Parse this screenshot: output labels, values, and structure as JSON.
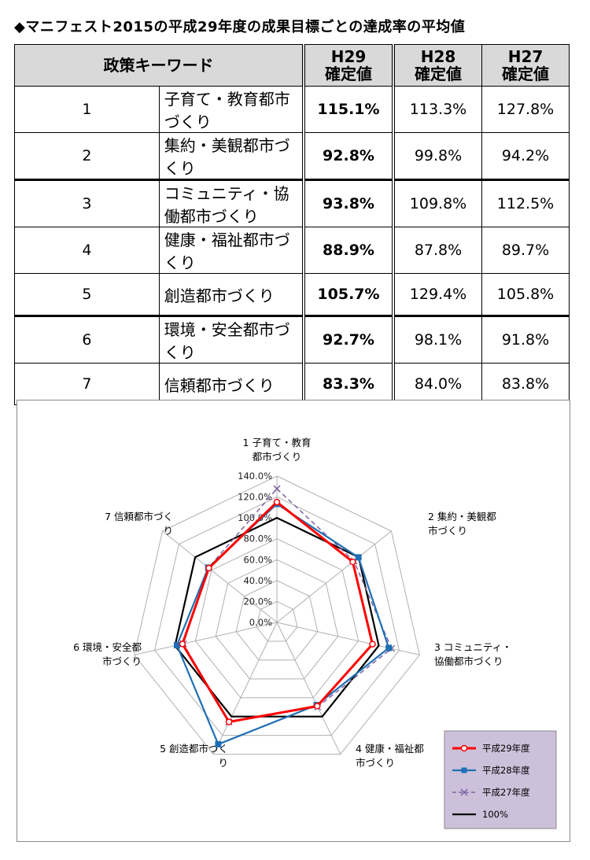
{
  "title": "◆マニフェスト2015の平成29年度の成果目標ごとの達成率の平均値",
  "table": {
    "headers": {
      "keyword": "政策キーワード",
      "h29_line1": "H29",
      "h29_line2": "確定値",
      "h28_line1": "H28",
      "h28_line2": "確定値",
      "h27_line1": "H27",
      "h27_line2": "確定値"
    },
    "rows": [
      {
        "no": "1",
        "keyword": "子育て・教育都市づくり",
        "h29": "115.1%",
        "h28": "113.3%",
        "h27": "127.8%"
      },
      {
        "no": "2",
        "keyword": "集約・美観都市づくり",
        "h29": "92.8%",
        "h28": "99.8%",
        "h27": "94.2%"
      },
      {
        "no": "3",
        "keyword": "コミュニティ・協働都市づくり",
        "h29": "93.8%",
        "h28": "109.8%",
        "h27": "112.5%"
      },
      {
        "no": "4",
        "keyword": "健康・福祉都市づくり",
        "h29": "88.9%",
        "h28": "87.8%",
        "h27": "89.7%"
      },
      {
        "no": "5",
        "keyword": "創造都市づくり",
        "h29": "105.7%",
        "h28": "129.4%",
        "h27": "105.8%"
      },
      {
        "no": "6",
        "keyword": "環境・安全都市づくり",
        "h29": "92.7%",
        "h28": "98.1%",
        "h27": "91.8%"
      },
      {
        "no": "7",
        "keyword": "信頼都市づくり",
        "h29": "83.3%",
        "h28": "84.0%",
        "h27": "83.8%"
      }
    ]
  },
  "chart_data": {
    "type": "radar",
    "categories": [
      [
        "1 子育て・教育",
        "都市づくり"
      ],
      [
        "2 集約・美観都",
        "市づくり"
      ],
      [
        "3 コミュニティ・",
        "協働都市づくり"
      ],
      [
        "4 健康・福祉都",
        "市づくり"
      ],
      [
        "5 創造都市づく",
        "り"
      ],
      [
        "6 環境・安全都",
        "市づくり"
      ],
      [
        "7 信頼都市づく",
        "り"
      ]
    ],
    "tick_labels": [
      "0.0%",
      "20.0%",
      "40.0%",
      "60.0%",
      "80.0%",
      "100.0%",
      "120.0%",
      "140.0%"
    ],
    "rmax": 140,
    "series": [
      {
        "name": "平成29年度",
        "values": [
          115.1,
          92.8,
          93.8,
          88.9,
          105.7,
          92.7,
          83.3
        ],
        "color": "#ff0000",
        "marker": "circle"
      },
      {
        "name": "平成28年度",
        "values": [
          113.3,
          99.8,
          109.8,
          87.8,
          129.4,
          98.1,
          84.0
        ],
        "color": "#1f6fb4",
        "marker": "square"
      },
      {
        "name": "平成27年度",
        "values": [
          127.8,
          94.2,
          112.5,
          89.7,
          105.8,
          91.8,
          83.8
        ],
        "color": "#8064a2",
        "marker": "x"
      },
      {
        "name": "100%",
        "values": [
          100,
          100,
          100,
          100,
          100,
          100,
          100
        ],
        "color": "#000000",
        "marker": "none"
      }
    ],
    "legend_position": "bottom-right",
    "grid": true
  }
}
